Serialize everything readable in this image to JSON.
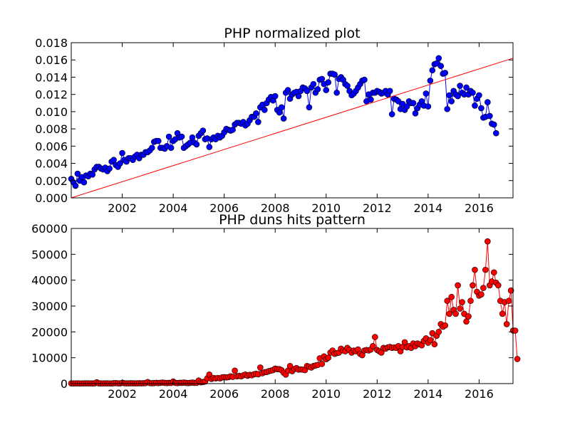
{
  "chart_data": [
    {
      "type": "line",
      "title": "PHP normalized plot",
      "xlabel": "",
      "ylabel": "",
      "xlim": [
        2000.0,
        2017.33
      ],
      "ylim": [
        0,
        0.018
      ],
      "xticks": [
        2002,
        2004,
        2006,
        2008,
        2010,
        2012,
        2014,
        2016
      ],
      "yticks": [
        0.0,
        0.002,
        0.004,
        0.006,
        0.008,
        0.01,
        0.012,
        0.014,
        0.016,
        0.018
      ],
      "ytick_labels": [
        "0.000",
        "0.002",
        "0.004",
        "0.006",
        "0.008",
        "0.010",
        "0.012",
        "0.014",
        "0.016",
        "0.018"
      ],
      "grid": false,
      "series": [
        {
          "color": "#0000ff",
          "marker": "circle",
          "x_start": 2000.0,
          "x_step_months": 1,
          "values": [
            0.0022,
            0.0018,
            0.0014,
            0.0028,
            0.002,
            0.0024,
            0.0018,
            0.0026,
            0.0025,
            0.0028,
            0.0027,
            0.0033,
            0.0036,
            0.0036,
            0.0034,
            0.0033,
            0.0035,
            0.0031,
            0.0034,
            0.0042,
            0.0044,
            0.0038,
            0.0036,
            0.004,
            0.0052,
            0.0044,
            0.0042,
            0.0046,
            0.0046,
            0.0044,
            0.0048,
            0.005,
            0.0046,
            0.005,
            0.005,
            0.0053,
            0.0053,
            0.0055,
            0.0058,
            0.0065,
            0.0066,
            0.0066,
            0.0058,
            0.0058,
            0.0057,
            0.006,
            0.0071,
            0.0058,
            0.0066,
            0.0068,
            0.0075,
            0.007,
            0.0071,
            0.0058,
            0.006,
            0.0062,
            0.0064,
            0.007,
            0.0064,
            0.0062,
            0.0072,
            0.0075,
            0.0078,
            0.0068,
            0.0069,
            0.0059,
            0.0068,
            0.007,
            0.0068,
            0.0072,
            0.007,
            0.0072,
            0.0076,
            0.008,
            0.0079,
            0.0078,
            0.0079,
            0.0085,
            0.0087,
            0.0087,
            0.0086,
            0.0088,
            0.0084,
            0.0086,
            0.009,
            0.0094,
            0.0094,
            0.0098,
            0.0088,
            0.0105,
            0.0108,
            0.0102,
            0.011,
            0.0114,
            0.0117,
            0.0113,
            0.0118,
            0.0102,
            0.0099,
            0.0105,
            0.0092,
            0.0122,
            0.0125,
            0.0115,
            0.012,
            0.0122,
            0.0123,
            0.0118,
            0.0124,
            0.0128,
            0.0127,
            0.0124,
            0.0105,
            0.0128,
            0.0132,
            0.0122,
            0.0126,
            0.0137,
            0.0138,
            0.0132,
            0.0125,
            0.0134,
            0.0144,
            0.0144,
            0.0143,
            0.0122,
            0.0138,
            0.014,
            0.0137,
            0.0132,
            0.013,
            0.0124,
            0.0119,
            0.0121,
            0.0124,
            0.0128,
            0.0132,
            0.0136,
            0.0137,
            0.0112,
            0.012,
            0.0114,
            0.0122,
            0.0122,
            0.0124,
            0.0123,
            0.0121,
            0.0122,
            0.0124,
            0.012,
            0.0124,
            0.0097,
            0.0115,
            0.0114,
            0.0112,
            0.0103,
            0.0109,
            0.0102,
            0.0106,
            0.0112,
            0.011,
            0.011,
            0.0098,
            0.0104,
            0.0108,
            0.0112,
            0.0107,
            0.0121,
            0.0106,
            0.0136,
            0.0148,
            0.0155,
            0.0156,
            0.0162,
            0.0153,
            0.0144,
            0.0145,
            0.0103,
            0.0119,
            0.0112,
            0.0124,
            0.012,
            0.0118,
            0.013,
            0.0122,
            0.012,
            0.0128,
            0.012,
            0.0124,
            0.0122,
            0.0107,
            0.0115,
            0.0119,
            0.0104,
            0.0093,
            0.0094,
            0.0111,
            0.0095,
            0.0086,
            0.0085,
            0.0075
          ]
        },
        {
          "color": "#ff0000",
          "marker": "none",
          "x": [
            2000.0,
            2017.33
          ],
          "values": [
            0.0,
            0.0162
          ]
        }
      ]
    },
    {
      "type": "line",
      "title": "PHP duns hits pattern",
      "xlabel": "",
      "ylabel": "",
      "xlim": [
        2000.0,
        2017.33
      ],
      "ylim": [
        0,
        60000
      ],
      "xticks": [
        2002,
        2004,
        2006,
        2008,
        2010,
        2012,
        2014,
        2016
      ],
      "yticks": [
        0,
        10000,
        20000,
        30000,
        40000,
        50000,
        60000
      ],
      "ytick_labels": [
        "0",
        "10000",
        "20000",
        "30000",
        "40000",
        "50000",
        "60000"
      ],
      "grid": false,
      "series": [
        {
          "color": "#ff0000",
          "marker": "circle",
          "x_start": 2000.0,
          "x_step_months": 1,
          "values": [
            80,
            60,
            70,
            90,
            60,
            70,
            80,
            100,
            80,
            70,
            60,
            80,
            500,
            90,
            80,
            70,
            100,
            80,
            70,
            60,
            150,
            200,
            100,
            80,
            300,
            150,
            100,
            100,
            150,
            120,
            100,
            100,
            150,
            100,
            150,
            200,
            600,
            200,
            150,
            200,
            300,
            200,
            300,
            400,
            300,
            200,
            300,
            250,
            800,
            300,
            200,
            300,
            300,
            400,
            300,
            200,
            300,
            400,
            300,
            300,
            1200,
            500,
            600,
            800,
            2000,
            3500,
            1800,
            2200,
            2000,
            2200,
            2000,
            2400,
            2500,
            2400,
            2500,
            2800,
            2600,
            5000,
            2800,
            3000,
            2800,
            3200,
            3500,
            3000,
            3400,
            3200,
            3600,
            3800,
            3600,
            6200,
            4000,
            4400,
            4500,
            4800,
            5000,
            5200,
            5800,
            5600,
            5600,
            5200,
            4200,
            3500,
            5000,
            6800,
            4800,
            5600,
            6000,
            5400,
            5500,
            5400,
            5200,
            6800,
            6500,
            6200,
            6800,
            7000,
            7200,
            9800,
            7600,
            10500,
            9400,
            10000,
            12000,
            12800,
            11500,
            11800,
            12000,
            13500,
            12800,
            12500,
            13800,
            13000,
            12000,
            12800,
            12500,
            13200,
            11500,
            11000,
            12800,
            13000,
            12800,
            13200,
            14500,
            18000,
            13000,
            12500,
            12000,
            13800,
            13500,
            14000,
            14200,
            13800,
            14000,
            13800,
            14500,
            12500,
            14200,
            16000,
            14000,
            14500,
            13800,
            15500,
            14500,
            15500,
            15200,
            14800,
            16500,
            17500,
            15800,
            16800,
            19500,
            15200,
            18500,
            20000,
            23000,
            22000,
            22500,
            32000,
            27000,
            33500,
            28500,
            27000,
            38000,
            29000,
            31500,
            27000,
            24000,
            26000,
            32000,
            38000,
            44000,
            35500,
            34000,
            34500,
            37000,
            44000,
            55000,
            38000,
            39500,
            43000,
            39000,
            38000,
            32000,
            27000,
            31500,
            23000,
            32000,
            36000,
            20500,
            20500,
            9500
          ]
        }
      ]
    }
  ]
}
